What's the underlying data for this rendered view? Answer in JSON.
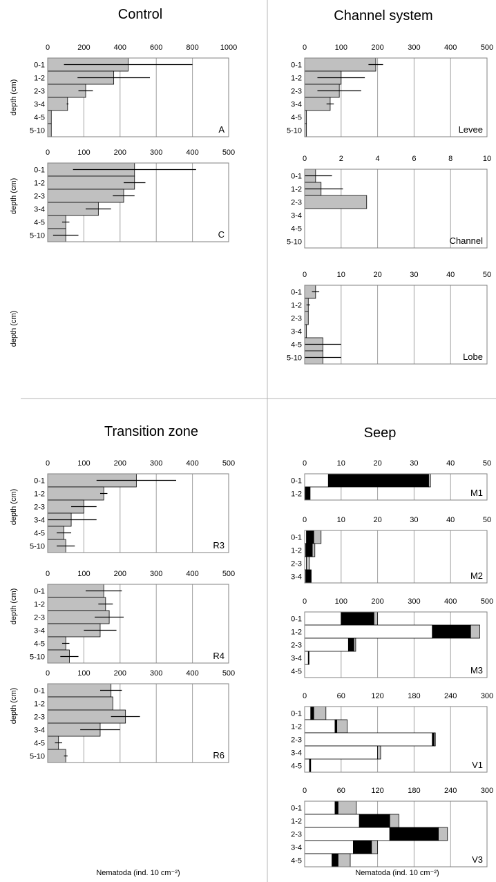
{
  "titles": {
    "control": "Control",
    "channel_system": "Channel system",
    "transition_zone": "Transition zone",
    "seep": "Seep"
  },
  "y_axis_label": "depth (cm)",
  "x_axis_label": "Nematoda (ind. 10 cm⁻²)",
  "colors": {
    "grey_fill": "#c0c0c0",
    "black_fill": "#000000",
    "white_fill": "#ffffff",
    "gridline": "#a0a0a0",
    "divider": "#b4b4b4"
  },
  "chart_data": [
    {
      "type": "bar",
      "orientation": "horizontal",
      "panel": "A",
      "group": "Control",
      "categories": [
        "0-1",
        "1-2",
        "2-3",
        "3-4",
        "4-5",
        "5-10"
      ],
      "xlim": [
        0,
        1000
      ],
      "xticks": [
        0,
        200,
        400,
        600,
        800,
        1000
      ],
      "segments": [
        {
          "color": "grey",
          "values": [
            445,
            365,
            210,
            110,
            20,
            20
          ]
        }
      ],
      "error": [
        355,
        200,
        40,
        5,
        0,
        0
      ]
    },
    {
      "type": "bar",
      "orientation": "horizontal",
      "panel": "C",
      "group": "Control",
      "categories": [
        "0-1",
        "1-2",
        "2-3",
        "3-4",
        "4-5",
        "5-10"
      ],
      "xlim": [
        0,
        500
      ],
      "xticks": [
        0,
        100,
        200,
        300,
        400,
        500
      ],
      "segments": [
        {
          "color": "grey",
          "values": [
            240,
            240,
            210,
            140,
            50,
            50
          ]
        }
      ],
      "error": [
        170,
        30,
        30,
        35,
        10,
        35
      ]
    },
    {
      "type": "bar",
      "orientation": "horizontal",
      "panel": "Levee",
      "group": "Channel system",
      "categories": [
        "0-1",
        "1-2",
        "2-3",
        "3-4",
        "4-5",
        "5-10"
      ],
      "xlim": [
        0,
        500
      ],
      "xticks": [
        0,
        100,
        200,
        300,
        400,
        500
      ],
      "segments": [
        {
          "color": "grey",
          "values": [
            195,
            100,
            95,
            70,
            5,
            5
          ]
        }
      ],
      "error": [
        20,
        65,
        60,
        10,
        0,
        0
      ]
    },
    {
      "type": "bar",
      "orientation": "horizontal",
      "panel": "Channel",
      "group": "Channel system",
      "categories": [
        "0-1",
        "1-2",
        "2-3",
        "3-4",
        "4-5",
        "5-10"
      ],
      "xlim": [
        0,
        10
      ],
      "xticks": [
        0,
        2,
        4,
        6,
        8,
        10
      ],
      "segments": [
        {
          "color": "grey",
          "values": [
            0.6,
            0.9,
            3.4,
            0,
            0,
            0
          ]
        }
      ],
      "error": [
        0.9,
        1.2,
        0,
        0,
        0,
        0
      ]
    },
    {
      "type": "bar",
      "orientation": "horizontal",
      "panel": "Lobe",
      "group": "Channel system",
      "categories": [
        "0-1",
        "1-2",
        "2-3",
        "3-4",
        "4-5",
        "5-10"
      ],
      "xlim": [
        0,
        50
      ],
      "xticks": [
        0,
        10,
        20,
        30,
        40,
        50
      ],
      "segments": [
        {
          "color": "grey",
          "values": [
            3,
            1,
            1,
            0.5,
            5,
            5
          ]
        }
      ],
      "error": [
        1,
        0.5,
        0,
        0,
        5,
        5
      ]
    },
    {
      "type": "bar",
      "orientation": "horizontal",
      "panel": "R3",
      "group": "Transition zone",
      "categories": [
        "0-1",
        "1-2",
        "2-3",
        "3-4",
        "4-5",
        "5-10"
      ],
      "xlim": [
        0,
        500
      ],
      "xticks": [
        0,
        100,
        200,
        300,
        400,
        500
      ],
      "segments": [
        {
          "color": "grey",
          "values": [
            245,
            155,
            100,
            65,
            45,
            50
          ]
        }
      ],
      "error": [
        110,
        10,
        35,
        70,
        20,
        25
      ]
    },
    {
      "type": "bar",
      "orientation": "horizontal",
      "panel": "R4",
      "group": "Transition zone",
      "categories": [
        "0-1",
        "1-2",
        "2-3",
        "3-4",
        "4-5",
        "5-10"
      ],
      "xlim": [
        0,
        500
      ],
      "xticks": [
        0,
        100,
        200,
        300,
        400,
        500
      ],
      "segments": [
        {
          "color": "grey",
          "values": [
            155,
            160,
            170,
            145,
            50,
            60
          ]
        }
      ],
      "error": [
        50,
        20,
        40,
        45,
        10,
        25
      ]
    },
    {
      "type": "bar",
      "orientation": "horizontal",
      "panel": "R6",
      "group": "Transition zone",
      "categories": [
        "0-1",
        "1-2",
        "2-3",
        "3-4",
        "4-5",
        "5-10"
      ],
      "xlim": [
        0,
        500
      ],
      "xticks": [
        0,
        100,
        200,
        300,
        400,
        500
      ],
      "segments": [
        {
          "color": "grey",
          "values": [
            175,
            180,
            215,
            145,
            30,
            50
          ]
        }
      ],
      "error": [
        30,
        0,
        40,
        55,
        10,
        5
      ]
    },
    {
      "type": "stacked_bar",
      "orientation": "horizontal",
      "panel": "M1",
      "group": "Seep",
      "categories": [
        "0-1",
        "1-2"
      ],
      "xlim": [
        0,
        50
      ],
      "xticks": [
        0,
        10,
        20,
        30,
        40,
        50
      ],
      "segments": [
        {
          "color": "white",
          "values": [
            6.5,
            0
          ]
        },
        {
          "color": "black",
          "values": [
            27.5,
            1.5
          ]
        },
        {
          "color": "grey",
          "values": [
            0.5,
            0
          ]
        }
      ]
    },
    {
      "type": "stacked_bar",
      "orientation": "horizontal",
      "panel": "M2",
      "group": "Seep",
      "categories": [
        "0-1",
        "1-2",
        "2-3",
        "3-4"
      ],
      "xlim": [
        0,
        50
      ],
      "xticks": [
        0,
        10,
        20,
        30,
        40,
        50
      ],
      "segments": [
        {
          "color": "white",
          "values": [
            0.5,
            0.3,
            0.5,
            0.3
          ]
        },
        {
          "color": "black",
          "values": [
            2,
            1.8,
            0,
            1.5
          ]
        },
        {
          "color": "grey",
          "values": [
            2,
            0.7,
            0.8,
            0
          ]
        }
      ]
    },
    {
      "type": "stacked_bar",
      "orientation": "horizontal",
      "panel": "M3",
      "group": "Seep",
      "categories": [
        "0-1",
        "1-2",
        "2-3",
        "3-4",
        "4-5"
      ],
      "xlim": [
        0,
        500
      ],
      "xticks": [
        0,
        100,
        200,
        300,
        400,
        500
      ],
      "segments": [
        {
          "color": "white",
          "values": [
            100,
            350,
            120,
            10,
            0
          ]
        },
        {
          "color": "black",
          "values": [
            90,
            105,
            15,
            2,
            0
          ]
        },
        {
          "color": "grey",
          "values": [
            10,
            25,
            5,
            0,
            0
          ]
        }
      ]
    },
    {
      "type": "stacked_bar",
      "orientation": "horizontal",
      "panel": "V1",
      "group": "Seep",
      "categories": [
        "0-1",
        "1-2",
        "2-3",
        "3-4",
        "4-5"
      ],
      "xlim": [
        0,
        300
      ],
      "xticks": [
        0,
        60,
        120,
        180,
        240,
        300
      ],
      "segments": [
        {
          "color": "white",
          "values": [
            10,
            50,
            210,
            120,
            8
          ]
        },
        {
          "color": "black",
          "values": [
            5,
            3,
            3,
            0,
            2
          ]
        },
        {
          "color": "grey",
          "values": [
            20,
            17,
            2,
            5,
            0
          ]
        }
      ]
    },
    {
      "type": "stacked_bar",
      "orientation": "horizontal",
      "panel": "V3",
      "group": "Seep",
      "categories": [
        "0-1",
        "1-2",
        "2-3",
        "3-4",
        "4-5"
      ],
      "xlim": [
        0,
        300
      ],
      "xticks": [
        0,
        60,
        120,
        180,
        240,
        300
      ],
      "segments": [
        {
          "color": "white",
          "values": [
            50,
            90,
            140,
            80,
            45
          ]
        },
        {
          "color": "black",
          "values": [
            5,
            50,
            80,
            30,
            10
          ]
        },
        {
          "color": "grey",
          "values": [
            30,
            15,
            15,
            10,
            20
          ]
        }
      ]
    }
  ]
}
